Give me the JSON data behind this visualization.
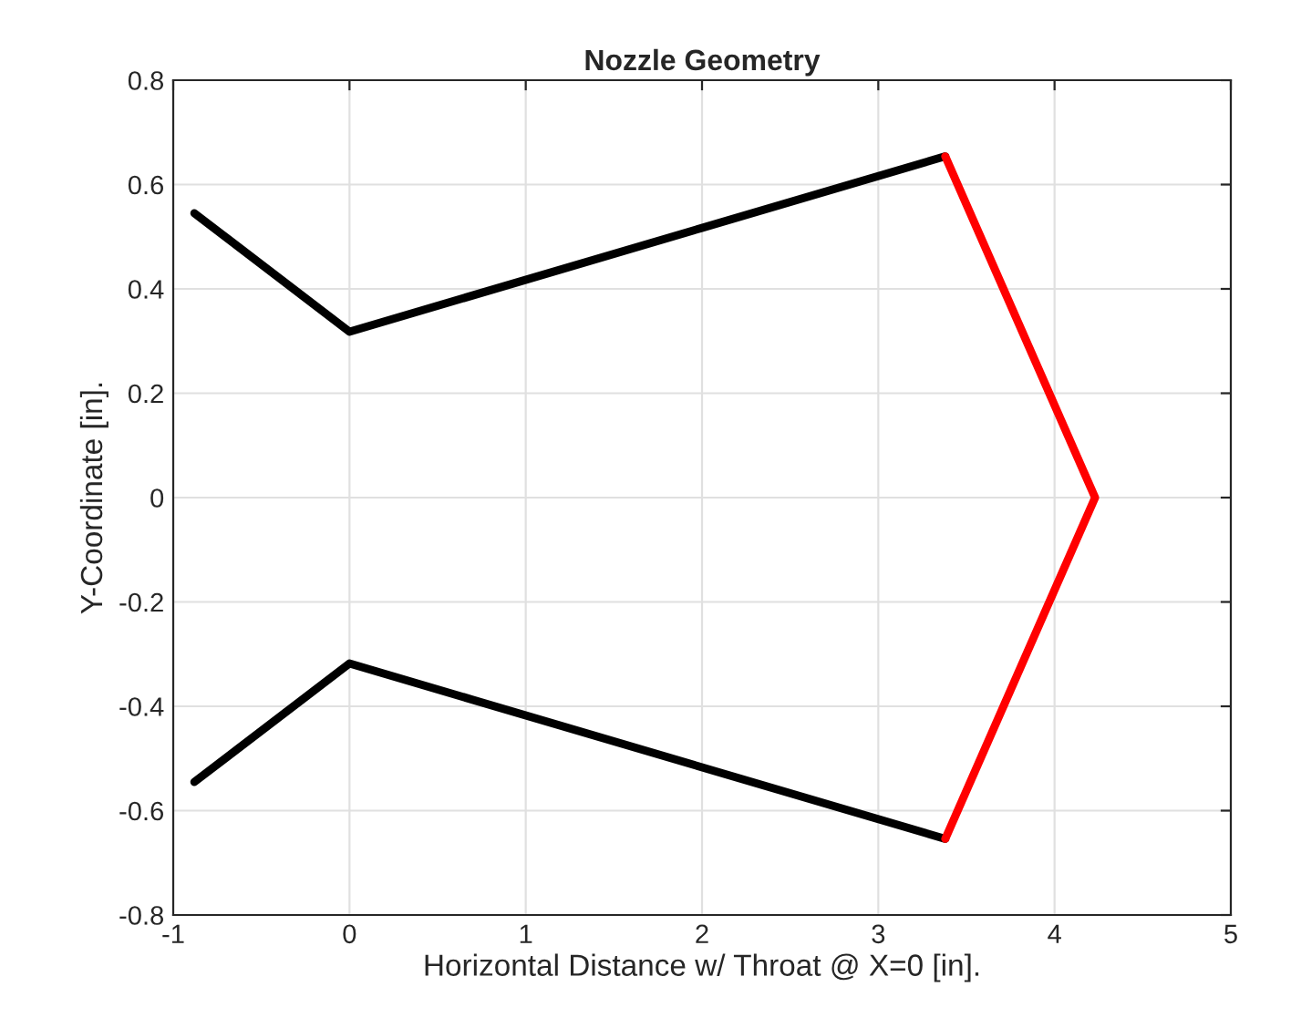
{
  "chart_data": {
    "type": "line",
    "title": "Nozzle Geometry",
    "xlabel": "Horizontal Distance w/ Throat @ X=0 [in].",
    "ylabel": "Y-Coordinate [in].",
    "series": [
      {
        "color": "#000000",
        "x": [
          -0.88,
          0,
          3.38
        ],
        "values": [
          0.545,
          0.318,
          0.654
        ]
      },
      {
        "color": "#000000",
        "x": [
          -0.88,
          0,
          3.38
        ],
        "values": [
          -0.545,
          -0.318,
          -0.654
        ]
      },
      {
        "color": "#ff0000",
        "x": [
          3.38,
          4.23,
          3.38
        ],
        "values": [
          0.654,
          0,
          -0.654
        ]
      }
    ],
    "xlim": [
      -1,
      5
    ],
    "xticks": [
      -1,
      0,
      1,
      2,
      3,
      4,
      5
    ],
    "ylim": [
      -0.8,
      0.8
    ],
    "yticks": [
      -0.8,
      -0.6,
      -0.4,
      -0.2,
      0,
      0.2,
      0.4,
      0.6,
      0.8
    ],
    "grid": true,
    "marker": "none",
    "line_style": "solid"
  }
}
